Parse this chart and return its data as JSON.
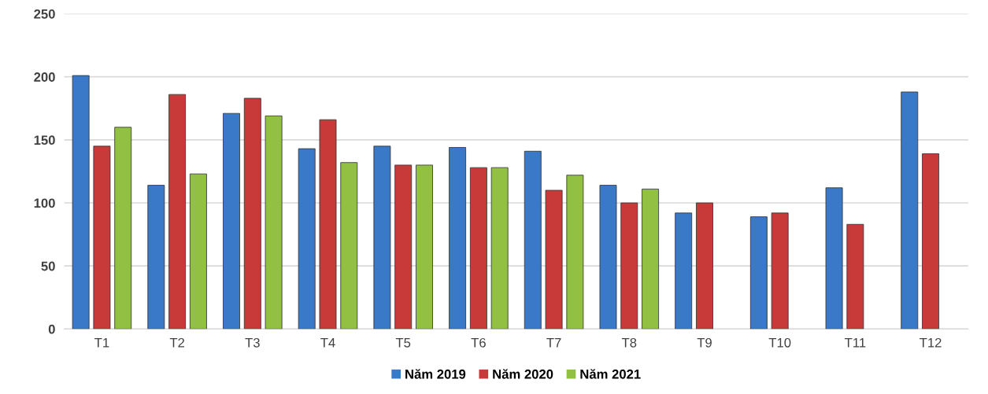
{
  "chart_data": {
    "type": "bar",
    "categories": [
      "T1",
      "T2",
      "T3",
      "T4",
      "T5",
      "T6",
      "T7",
      "T8",
      "T9",
      "T10",
      "T11",
      "T12"
    ],
    "series": [
      {
        "name": "Năm 2019",
        "color": "#3a78c8",
        "values": [
          201,
          114,
          171,
          143,
          145,
          144,
          141,
          114,
          92,
          89,
          112,
          188
        ]
      },
      {
        "name": "Năm 2020",
        "color": "#c83a3a",
        "values": [
          145,
          186,
          183,
          166,
          130,
          128,
          110,
          100,
          100,
          92,
          83,
          139
        ]
      },
      {
        "name": "Năm 2021",
        "color": "#92c043",
        "values": [
          160,
          123,
          169,
          132,
          130,
          128,
          122,
          111,
          null,
          null,
          null,
          null
        ]
      }
    ],
    "ylim": [
      0,
      250
    ],
    "yticks": [
      0,
      50,
      100,
      150,
      200,
      250
    ],
    "grid": "y",
    "legend": "bottom"
  }
}
